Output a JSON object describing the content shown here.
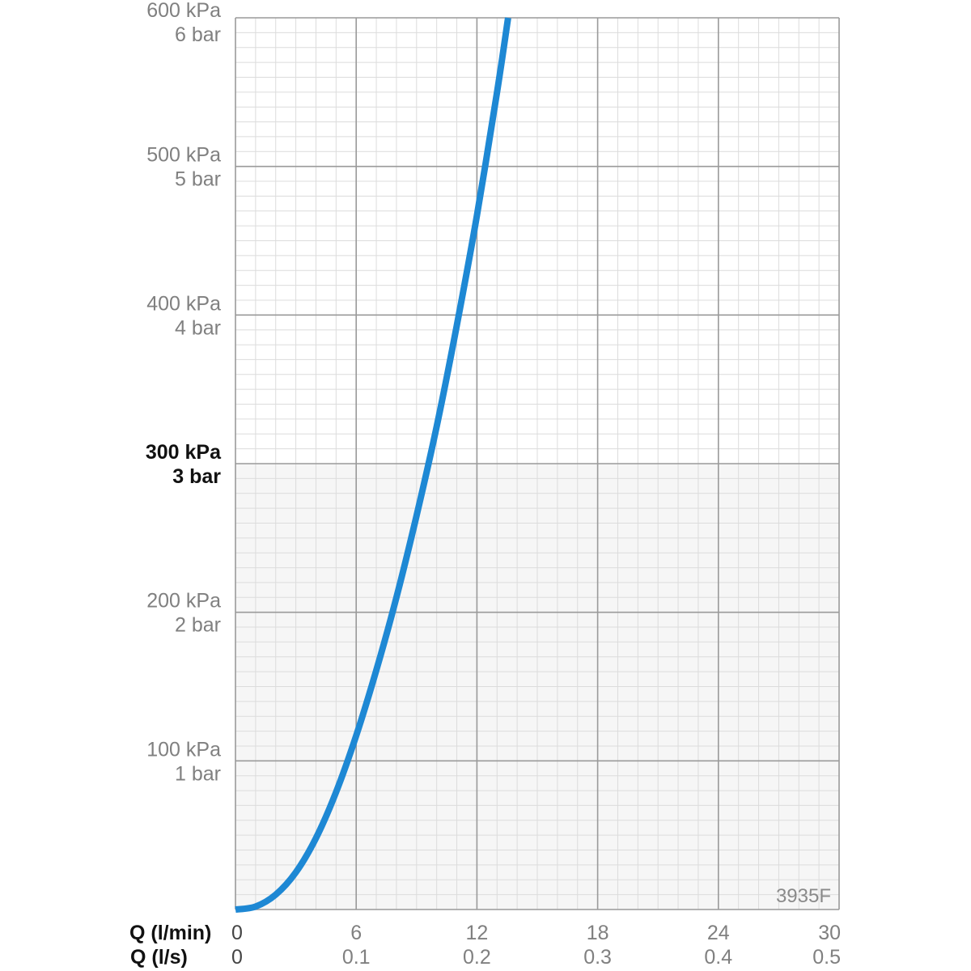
{
  "chart_data": {
    "type": "line",
    "x_axis": {
      "labels": [
        "Q (l/min)",
        "Q (l/s)"
      ],
      "range": [
        0,
        30
      ],
      "ticks": [
        0,
        6,
        12,
        18,
        24,
        30
      ],
      "tick_labels": [
        "0",
        "6",
        "12",
        "18",
        "24",
        "30"
      ],
      "secondary_tick_labels": [
        "0",
        "0.1",
        "0.2",
        "0.3",
        "0.4",
        "0.5"
      ]
    },
    "y_axis": {
      "range": [
        0,
        600
      ],
      "ticks": [
        100,
        200,
        300,
        400,
        500,
        600
      ],
      "tick_labels": [
        "100 kPa",
        "200 kPa",
        "300 kPa",
        "400 kPa",
        "500 kPa",
        "600 kPa"
      ],
      "secondary_tick_labels": [
        "1 bar",
        "2 bar",
        "3 bar",
        "4 bar",
        "5 bar",
        "6 bar"
      ],
      "highlighted_tick": 300
    },
    "grid": {
      "major": true,
      "minor": true,
      "minor_x_step": 1,
      "minor_y_step": 10
    },
    "shaded_y_range": [
      0,
      300
    ],
    "series": [
      {
        "color": "#1e88d4",
        "x": [
          0,
          1,
          2,
          3,
          4,
          5,
          6,
          7,
          8,
          9,
          10,
          11,
          12,
          13,
          13.55
        ],
        "y": [
          0,
          2,
          10,
          25,
          48,
          79,
          117,
          161,
          210,
          265,
          325,
          393,
          467,
          550,
          600
        ]
      }
    ],
    "annotation": "3935F"
  },
  "colors": {
    "curve": "#1e88d4",
    "major_grid": "#9a9a9a",
    "minor_grid": "#dcdcdc",
    "tick_label": "#808080",
    "zero_label": "#444444",
    "highlight_label": "#111111",
    "shaded_region": "#f6f6f6"
  }
}
